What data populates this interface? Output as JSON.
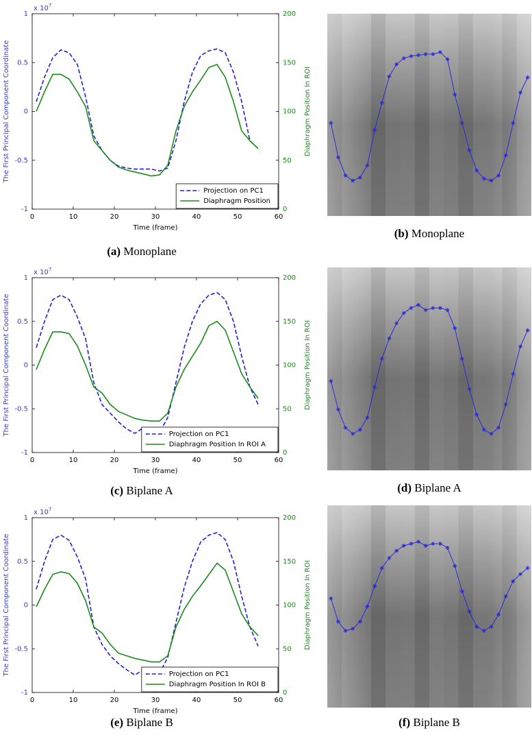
{
  "chart_data": [
    {
      "type": "line",
      "caption": {
        "label": "(a)",
        "text": "Monoplane"
      },
      "xlabel": "Time (frame)",
      "ylabel": "The First Principal Component Coordinate",
      "y2label": "Diaphragm Position In ROI",
      "y_multiplier": {
        "base": "x 10",
        "exponent": "7"
      },
      "x": [
        1,
        3,
        5,
        7,
        9,
        11,
        13,
        15,
        17,
        19,
        21,
        23,
        25,
        27,
        29,
        31,
        33,
        35,
        37,
        39,
        41,
        43,
        45,
        47,
        49,
        51,
        53,
        55
      ],
      "xlim": [
        0,
        60
      ],
      "xticks": [
        0,
        10,
        20,
        30,
        40,
        50,
        60
      ],
      "ylim": [
        -1,
        1
      ],
      "yticks": [
        -1,
        -0.5,
        0,
        0.5,
        1
      ],
      "y2lim": [
        0,
        200
      ],
      "y2ticks": [
        0,
        50,
        100,
        150,
        200
      ],
      "legend": "lower right",
      "series": [
        {
          "name": "Projection on PC1",
          "color": "#1f1fd0",
          "linestyle": "dashed",
          "axis": "y",
          "values": [
            0.1,
            0.35,
            0.55,
            0.63,
            0.6,
            0.48,
            0.15,
            -0.25,
            -0.4,
            -0.5,
            -0.56,
            -0.58,
            -0.59,
            -0.59,
            -0.59,
            -0.61,
            -0.58,
            -0.3,
            0.1,
            0.4,
            0.57,
            0.62,
            0.64,
            0.6,
            0.4,
            0.1,
            -0.3,
            -0.38
          ]
        },
        {
          "name": "Diaphragm Position",
          "color": "#1a8a1a",
          "linestyle": "solid",
          "axis": "y2",
          "values": [
            100,
            120,
            138,
            138,
            133,
            120,
            105,
            70,
            60,
            50,
            43,
            40,
            38,
            36,
            34,
            35,
            45,
            80,
            105,
            120,
            132,
            145,
            148,
            135,
            110,
            80,
            70,
            62
          ]
        }
      ]
    },
    {
      "type": "trace",
      "caption": {
        "label": "(b)",
        "text": "Monoplane"
      },
      "x": [
        1,
        3,
        5,
        7,
        9,
        11,
        13,
        15,
        17,
        19,
        21,
        23,
        25,
        27,
        29,
        31,
        33,
        35,
        37,
        39,
        41,
        43,
        45,
        47,
        49,
        51,
        53,
        55
      ],
      "xlim": [
        0,
        56
      ],
      "ylim": [
        0,
        200
      ],
      "y_inverted": true,
      "color": "#2b2bd8",
      "values": [
        108,
        142,
        160,
        165,
        162,
        150,
        115,
        88,
        62,
        50,
        44,
        42,
        41,
        40,
        40,
        38,
        45,
        80,
        108,
        135,
        155,
        163,
        165,
        160,
        140,
        108,
        78,
        63
      ]
    },
    {
      "type": "line",
      "caption": {
        "label": "(c)",
        "text": "Biplane A"
      },
      "xlabel": "Time (frame)",
      "ylabel": "The First Principal Component Coordinate",
      "y2label": "Diaphragm Position In ROI",
      "y_multiplier": {
        "base": "x 10",
        "exponent": "7"
      },
      "x": [
        1,
        3,
        5,
        7,
        9,
        11,
        13,
        15,
        17,
        19,
        21,
        23,
        25,
        27,
        29,
        31,
        33,
        35,
        37,
        39,
        41,
        43,
        45,
        47,
        49,
        51,
        53,
        55
      ],
      "xlim": [
        0,
        60
      ],
      "xticks": [
        0,
        10,
        20,
        30,
        40,
        50,
        60
      ],
      "ylim": [
        -1,
        1
      ],
      "yticks": [
        -1,
        -0.5,
        0,
        0.5,
        1
      ],
      "y2lim": [
        0,
        200
      ],
      "y2ticks": [
        0,
        50,
        100,
        150,
        200
      ],
      "legend": "lower right",
      "series": [
        {
          "name": "Projection on PC1",
          "color": "#1f1fd0",
          "linestyle": "dashed",
          "axis": "y",
          "values": [
            0.2,
            0.5,
            0.75,
            0.8,
            0.75,
            0.55,
            0.3,
            -0.2,
            -0.45,
            -0.55,
            -0.65,
            -0.73,
            -0.78,
            -0.72,
            -0.77,
            -0.77,
            -0.6,
            -0.2,
            0.2,
            0.5,
            0.7,
            0.8,
            0.83,
            0.75,
            0.5,
            0.1,
            -0.25,
            -0.45
          ]
        },
        {
          "name": "Diaphragm Position In ROI A",
          "color": "#1a8a1a",
          "linestyle": "solid",
          "axis": "y2",
          "values": [
            95,
            118,
            138,
            138,
            136,
            122,
            100,
            75,
            68,
            55,
            47,
            43,
            39,
            37,
            36,
            36,
            45,
            75,
            95,
            110,
            125,
            145,
            150,
            140,
            115,
            90,
            75,
            62
          ]
        }
      ]
    },
    {
      "type": "trace",
      "caption": {
        "label": "(d)",
        "text": "Biplane A"
      },
      "x": [
        1,
        3,
        5,
        7,
        9,
        11,
        13,
        15,
        17,
        19,
        21,
        23,
        25,
        27,
        29,
        31,
        33,
        35,
        37,
        39,
        41,
        43,
        45,
        47,
        49,
        51,
        53,
        55
      ],
      "xlim": [
        0,
        56
      ],
      "ylim": [
        0,
        200
      ],
      "y_inverted": true,
      "color": "#2b2bd8",
      "values": [
        112,
        140,
        158,
        164,
        160,
        148,
        118,
        90,
        70,
        55,
        45,
        40,
        37,
        42,
        40,
        40,
        42,
        60,
        90,
        120,
        145,
        160,
        164,
        158,
        135,
        105,
        78,
        62
      ]
    },
    {
      "type": "line",
      "caption": {
        "label": "(e)",
        "text": "Biplane B"
      },
      "xlabel": "Time (frame)",
      "ylabel": "The First Principal Component Coordinate",
      "y2label": "Diaphragm Position In ROI",
      "y_multiplier": {
        "base": "x 10",
        "exponent": "7"
      },
      "x": [
        1,
        3,
        5,
        7,
        9,
        11,
        13,
        15,
        17,
        19,
        21,
        23,
        25,
        27,
        29,
        31,
        33,
        35,
        37,
        39,
        41,
        43,
        45,
        47,
        49,
        51,
        53,
        55
      ],
      "xlim": [
        0,
        60
      ],
      "xticks": [
        0,
        10,
        20,
        30,
        40,
        50,
        60
      ],
      "ylim": [
        -1,
        1
      ],
      "yticks": [
        -1,
        -0.5,
        0,
        0.5,
        1
      ],
      "y2lim": [
        0,
        200
      ],
      "y2ticks": [
        0,
        50,
        100,
        150,
        200
      ],
      "legend": "lower right",
      "series": [
        {
          "name": "Projection on PC1",
          "color": "#1f1fd0",
          "linestyle": "dashed",
          "axis": "y",
          "values": [
            0.18,
            0.5,
            0.75,
            0.8,
            0.74,
            0.55,
            0.3,
            -0.25,
            -0.45,
            -0.58,
            -0.67,
            -0.74,
            -0.8,
            -0.74,
            -0.78,
            -0.78,
            -0.6,
            -0.2,
            0.2,
            0.5,
            0.72,
            0.8,
            0.83,
            0.75,
            0.5,
            0.1,
            -0.25,
            -0.47
          ]
        },
        {
          "name": "Diaphragm Position In ROI B",
          "color": "#1a8a1a",
          "linestyle": "solid",
          "axis": "y2",
          "values": [
            98,
            118,
            135,
            138,
            136,
            125,
            105,
            75,
            68,
            55,
            45,
            42,
            39,
            37,
            35,
            35,
            42,
            75,
            95,
            110,
            122,
            135,
            148,
            140,
            115,
            90,
            75,
            65
          ]
        }
      ]
    },
    {
      "type": "trace",
      "caption": {
        "label": "(f)",
        "text": "Biplane B"
      },
      "x": [
        1,
        3,
        5,
        7,
        9,
        11,
        13,
        15,
        17,
        19,
        21,
        23,
        25,
        27,
        29,
        31,
        33,
        35,
        37,
        39,
        41,
        43,
        45,
        47,
        49,
        51,
        53,
        55
      ],
      "xlim": [
        0,
        56
      ],
      "ylim": [
        0,
        200
      ],
      "y_inverted": true,
      "color": "#2b2bd8",
      "values": [
        92,
        115,
        124,
        122,
        115,
        100,
        80,
        62,
        52,
        45,
        40,
        38,
        36,
        40,
        38,
        38,
        42,
        60,
        85,
        105,
        120,
        124,
        120,
        108,
        90,
        75,
        68,
        62
      ]
    }
  ]
}
